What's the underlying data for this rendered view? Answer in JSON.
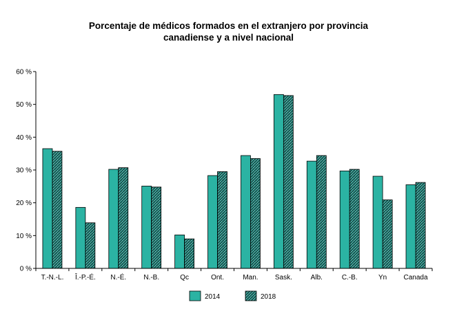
{
  "chart_data": {
    "type": "bar",
    "title_line1": "Porcentaje de médicos formados en el extranjero por provincia",
    "title_line2": "canadiense y a nivel nacional",
    "categories": [
      "T.-N.-L.",
      "Î.-P.-É.",
      "N.-É.",
      "N.-B.",
      "Qc",
      "Ont.",
      "Man.",
      "Sask.",
      "Alb.",
      "C.-B.",
      "Yn",
      "Canada"
    ],
    "series": [
      {
        "name": "2014",
        "values": [
          36.5,
          18.6,
          30.2,
          25.1,
          10.2,
          28.3,
          34.4,
          53.0,
          32.7,
          29.7,
          28.1,
          25.5
        ],
        "color": "#2bb3a3",
        "pattern": "solid"
      },
      {
        "name": "2018",
        "values": [
          35.7,
          13.9,
          30.7,
          24.8,
          9.0,
          29.5,
          33.5,
          52.7,
          34.4,
          30.2,
          20.9,
          26.2
        ],
        "color": "#2a7f78",
        "pattern": "checker"
      }
    ],
    "ylim": [
      0,
      60
    ],
    "yticks": [
      0,
      10,
      20,
      30,
      40,
      50,
      60
    ],
    "ytick_labels": [
      "0 %",
      "10 %",
      "20 %",
      "30 %",
      "40 %",
      "50 %",
      "60 %"
    ],
    "grid": false,
    "legend_position": "bottom-center"
  }
}
